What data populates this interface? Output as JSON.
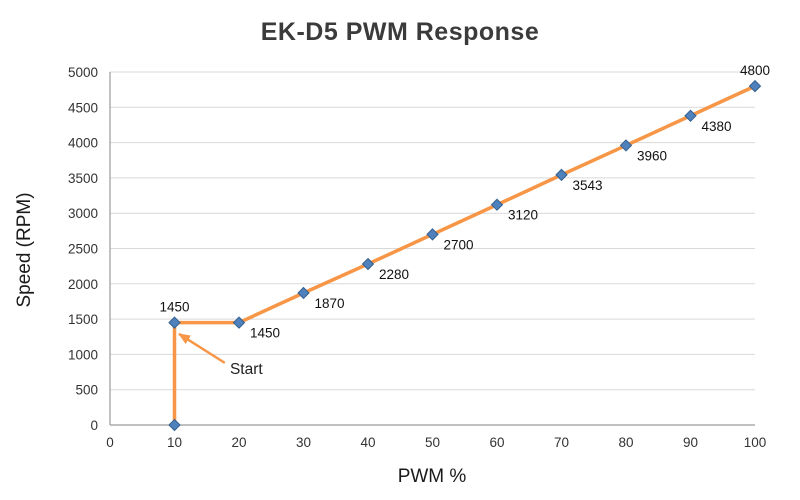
{
  "page": {
    "background": "#ffffff"
  },
  "chart_data": {
    "type": "line",
    "title": "EK-D5 PWM Response",
    "xlabel": "PWM %",
    "ylabel": "Speed (RPM)",
    "xlim": [
      0,
      100
    ],
    "ylim": [
      0,
      5000
    ],
    "x_ticks": [
      0,
      10,
      20,
      30,
      40,
      50,
      60,
      70,
      80,
      90,
      100
    ],
    "y_ticks": [
      0,
      500,
      1000,
      1500,
      2000,
      2500,
      3000,
      3500,
      4000,
      4500,
      5000
    ],
    "grid": "horizontal-only",
    "legend": "none",
    "colors": {
      "line": "#F79646",
      "marker_fill": "#4F81BD",
      "marker_stroke": "#35618F",
      "grid": "#D9D9D9",
      "axis": "#9B9B9B",
      "tick_text": "#333333",
      "title_text": "#3B3B3B",
      "label_text": "#111111",
      "annotation_arrow": "#F79646"
    },
    "series": [
      {
        "name": "EK-D5 speed",
        "marker": "diamond",
        "points": [
          {
            "x": 10,
            "y": 0
          },
          {
            "x": 10,
            "y": 1450,
            "label": "1450",
            "label_pos": "above"
          },
          {
            "x": 20,
            "y": 1450,
            "label": "1450",
            "label_pos": "right-below"
          },
          {
            "x": 30,
            "y": 1870,
            "label": "1870",
            "label_pos": "right-below"
          },
          {
            "x": 40,
            "y": 2280,
            "label": "2280",
            "label_pos": "right-below"
          },
          {
            "x": 50,
            "y": 2700,
            "label": "2700",
            "label_pos": "right-below"
          },
          {
            "x": 60,
            "y": 3120,
            "label": "3120",
            "label_pos": "right-below"
          },
          {
            "x": 70,
            "y": 3543,
            "label": "3543",
            "label_pos": "right-below"
          },
          {
            "x": 80,
            "y": 3960,
            "label": "3960",
            "label_pos": "right-below"
          },
          {
            "x": 90,
            "y": 4380,
            "label": "4380",
            "label_pos": "right-below"
          },
          {
            "x": 100,
            "y": 4800,
            "label": "4800",
            "label_pos": "above"
          }
        ]
      }
    ],
    "annotation": {
      "text": "Start",
      "text_at": {
        "x": 18.6,
        "y": 720
      },
      "arrow_from": {
        "x": 17.8,
        "y": 880
      },
      "arrow_to": {
        "x": 10.7,
        "y": 1290
      }
    }
  }
}
